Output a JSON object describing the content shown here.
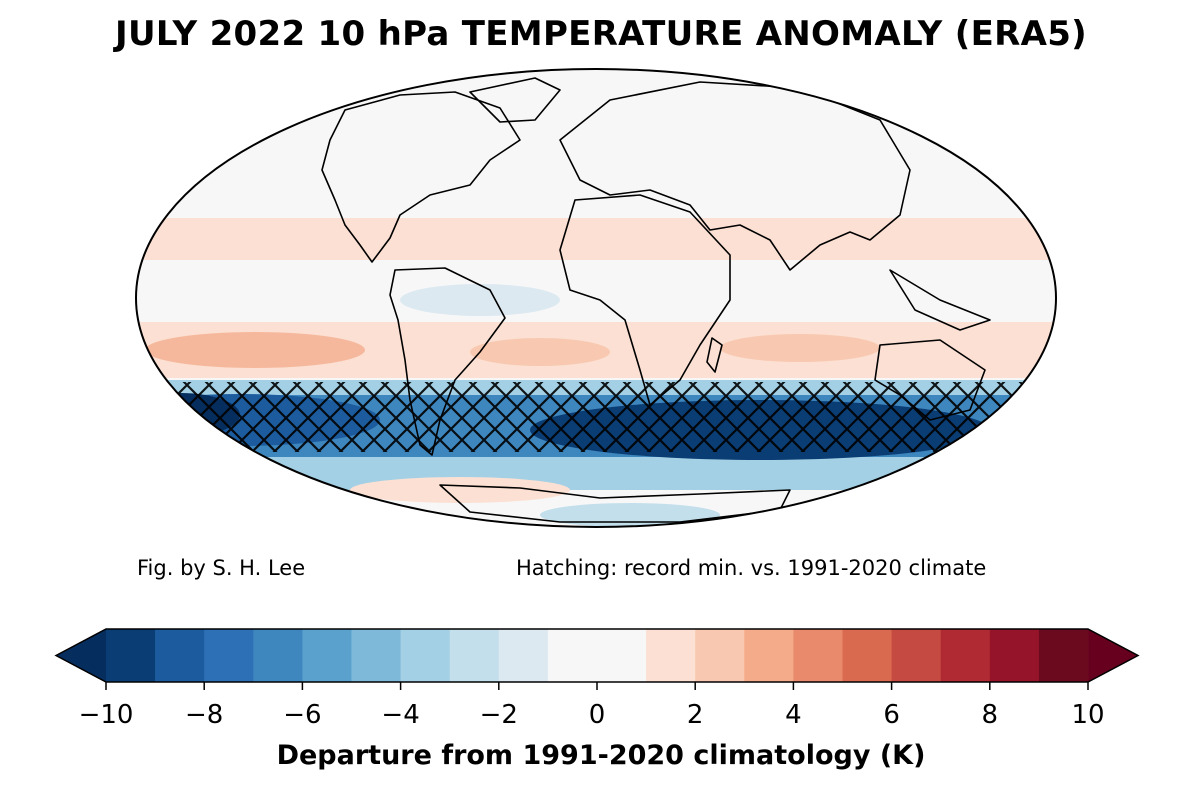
{
  "title": "JULY 2022 10 hPa TEMPERATURE ANOMALY (ERA5)",
  "credit": "Fig. by S. H. Lee",
  "hatching_note": "Hatching: record min. vs. 1991-2020 climate",
  "colorbar": {
    "label": "Departure from 1991-2020 climatology (K)",
    "levels": [
      -10,
      -9,
      -8,
      -7,
      -6,
      -5,
      -4,
      -3,
      -2,
      -1,
      0,
      1,
      2,
      3,
      4,
      5,
      6,
      7,
      8,
      9,
      10
    ],
    "colors": [
      "#0a3d73",
      "#1c5c9e",
      "#2d70b5",
      "#3e86be",
      "#5aa2cd",
      "#7fb9da",
      "#a3d0e5",
      "#c3dfec",
      "#dde9f1",
      "#f7f7f7",
      "#f7f7f7",
      "#fbe0d3",
      "#f8c9b0",
      "#f4ab8a",
      "#e88a6b",
      "#d9694f",
      "#c54a41",
      "#b02a33",
      "#961429",
      "#6b0a1f"
    ],
    "under_color": "#052d5e",
    "over_color": "#67001f",
    "ticks": [
      "−10",
      "−8",
      "−6",
      "−4",
      "−2",
      "0",
      "2",
      "4",
      "6",
      "8",
      "10"
    ]
  },
  "map": {
    "projection": "mollweide",
    "background_color": "#f7f7f7",
    "anomaly_bands_K": [
      {
        "lat_from": 90,
        "lat_to": 35,
        "value": 0
      },
      {
        "lat_from": 35,
        "lat_to": 15,
        "value": 1.3
      },
      {
        "lat_from": 15,
        "lat_to": -12,
        "value": 0
      },
      {
        "lat_from": -12,
        "lat_to": -30,
        "value": 1.6
      },
      {
        "lat_from": -30,
        "lat_to": -38,
        "value": 0
      },
      {
        "lat_from": -38,
        "lat_to": -46,
        "value": -4
      },
      {
        "lat_from": -46,
        "lat_to": -56,
        "value": -8.5
      },
      {
        "lat_from": -56,
        "lat_to": -64,
        "value": -5
      },
      {
        "lat_from": -64,
        "lat_to": -72,
        "value": 1.2
      },
      {
        "lat_from": -72,
        "lat_to": -90,
        "value": -2.2
      }
    ],
    "hatching": "record minimum vs. 1991-2020 climate, approx. 38S-55S"
  }
}
